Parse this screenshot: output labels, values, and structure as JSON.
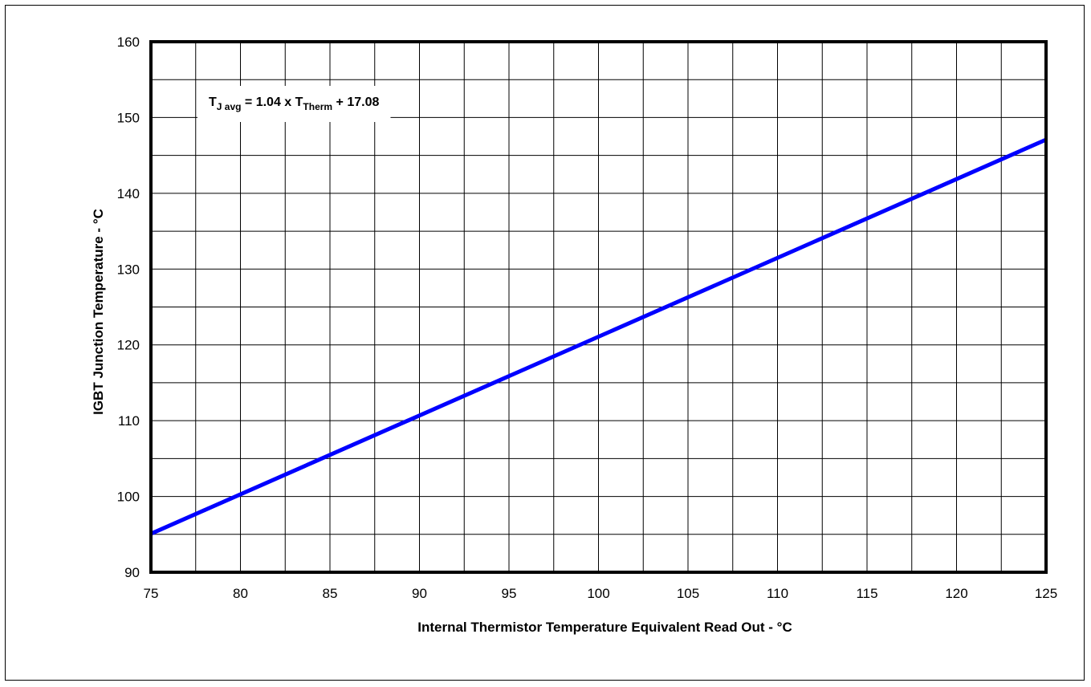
{
  "chart_data": {
    "type": "line",
    "title": "",
    "xlabel": "Internal Thermistor Temperature Equivalent Read Out - °C",
    "ylabel": "IGBT Junction Temperature - °C",
    "xlim": [
      75,
      125
    ],
    "ylim": [
      90,
      160
    ],
    "x_ticks": [
      "75",
      "80",
      "85",
      "90",
      "95",
      "100",
      "105",
      "110",
      "115",
      "120",
      "125"
    ],
    "y_ticks": [
      "90",
      "100",
      "110",
      "120",
      "130",
      "140",
      "150",
      "160"
    ],
    "x_minor_step": 2.5,
    "y_minor_step": 5,
    "grid": true,
    "series": [
      {
        "x": [
          75,
          125
        ],
        "y": [
          95.08,
          147.08
        ],
        "color": "#0000ff"
      }
    ],
    "annotation": {
      "parts": [
        {
          "text": "T",
          "style": "normal"
        },
        {
          "text": "J avg",
          "style": "sub"
        },
        {
          "text": " = 1.04 x T",
          "style": "normal"
        },
        {
          "text": "Therm",
          "style": "sub"
        },
        {
          "text": " + 17.08",
          "style": "normal"
        }
      ]
    }
  }
}
